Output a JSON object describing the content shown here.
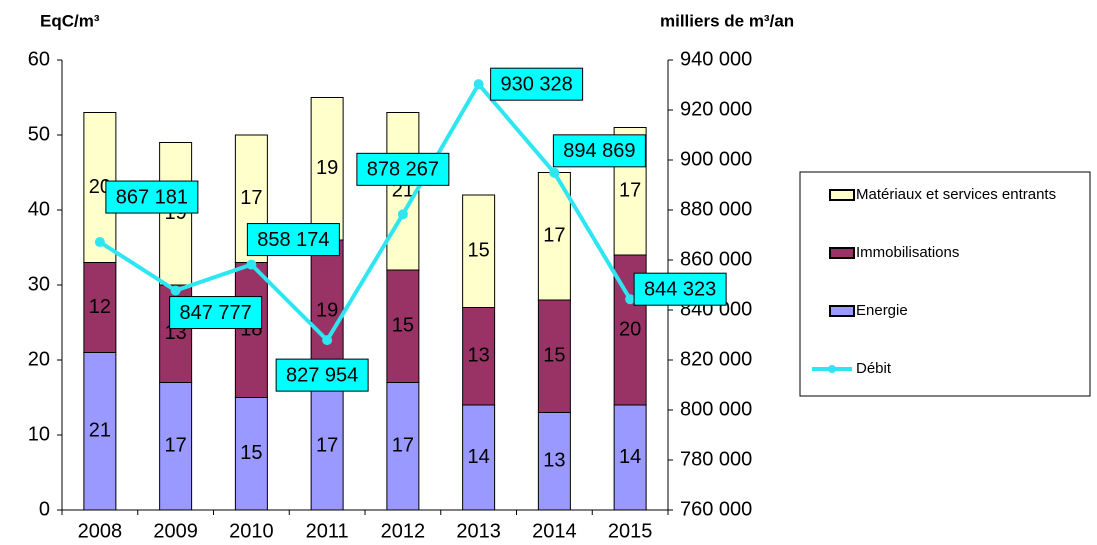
{
  "chart_data": {
    "type": "bar",
    "ylabel": "EqC/m³",
    "y2label": "milliers de m³/an",
    "categories": [
      "2008",
      "2009",
      "2010",
      "2011",
      "2012",
      "2013",
      "2014",
      "2015"
    ],
    "series": [
      {
        "name": "Energie",
        "color": "#9999ff",
        "values": [
          21,
          17,
          15,
          17,
          17,
          14,
          13,
          14
        ]
      },
      {
        "name": "Immobilisations",
        "color": "#993366",
        "values": [
          12,
          13,
          18,
          19,
          15,
          13,
          15,
          20
        ]
      },
      {
        "name": "Matériaux et services entrants",
        "color": "#ffffcc",
        "values": [
          20,
          19,
          17,
          19,
          21,
          15,
          17,
          17
        ]
      },
      {
        "name": "Débit",
        "color": "#2ee6f2",
        "type": "line",
        "axis": "y2",
        "values": [
          867181,
          847777,
          858174,
          827954,
          878267,
          930328,
          894869,
          844323
        ],
        "value_labels": [
          "867 181",
          "847 777",
          "858 174",
          "827 954",
          "878 267",
          "930 328",
          "894 869",
          "844 323"
        ]
      }
    ],
    "stacked": true,
    "ylim": [
      0,
      60
    ],
    "yticks": [
      0,
      10,
      20,
      30,
      40,
      50,
      60
    ],
    "y2lim": [
      760000,
      940000
    ],
    "y2ticks": [
      {
        "value": 760000,
        "label": "760 000"
      },
      {
        "value": 780000,
        "label": "780 000"
      },
      {
        "value": 800000,
        "label": "800 000"
      },
      {
        "value": 820000,
        "label": "820 000"
      },
      {
        "value": 840000,
        "label": "840 000"
      },
      {
        "value": 860000,
        "label": "860 000"
      },
      {
        "value": 880000,
        "label": "880 000"
      },
      {
        "value": 900000,
        "label": "900 000"
      },
      {
        "value": 920000,
        "label": "920 000"
      },
      {
        "value": 940000,
        "label": "940 000"
      }
    ],
    "grid": false,
    "legend": "right"
  }
}
